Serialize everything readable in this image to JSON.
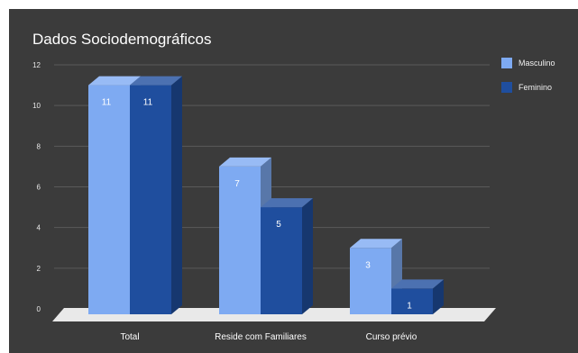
{
  "chart_data": {
    "type": "bar",
    "title": "Dados Sociodemográficos",
    "categories": [
      "Total",
      "Reside com Familiares",
      "Curso prévio"
    ],
    "series": [
      {
        "name": "Masculino",
        "values": [
          11,
          7,
          3
        ],
        "color": "#7eaaf2"
      },
      {
        "name": "Feminino",
        "values": [
          11,
          5,
          1
        ],
        "color": "#1f4e9e"
      }
    ],
    "ylim": [
      0,
      12
    ],
    "yticks": [
      "0",
      "2",
      "4",
      "6",
      "8",
      "10",
      "12"
    ],
    "grid": true,
    "legend_position": "right",
    "style": "3d-column",
    "background": "#3b3b3b"
  }
}
